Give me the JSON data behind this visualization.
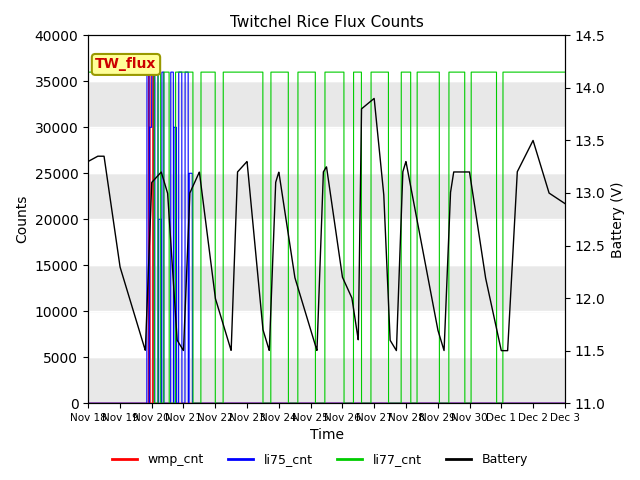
{
  "title": "Twitchel Rice Flux Counts",
  "xlabel": "Time",
  "ylabel_left": "Counts",
  "ylabel_right": "Battery (V)",
  "ylim_left": [
    0,
    40000
  ],
  "ylim_right": [
    11.0,
    14.5
  ],
  "yticks_left": [
    0,
    5000,
    10000,
    15000,
    20000,
    25000,
    30000,
    35000,
    40000
  ],
  "yticks_right": [
    11.0,
    11.5,
    12.0,
    12.5,
    13.0,
    13.5,
    14.0,
    14.5
  ],
  "xtick_labels": [
    "Nov 18",
    "Nov 19",
    "Nov 20",
    "Nov 21",
    "Nov 22",
    "Nov 23",
    "Nov 24",
    "Nov 25",
    "Nov 26",
    "Nov 27",
    "Nov 28",
    "Nov 29",
    "Nov 30",
    "Dec 1",
    "Dec 2",
    "Dec 3"
  ],
  "annotation_text": "TW_flux",
  "annotation_color": "#cc0000",
  "annotation_bg": "#ffff99",
  "bg_band_colors": [
    "#e8e8e8",
    "#ffffff"
  ],
  "wmp_color": "#ff0000",
  "li75_color": "#0000ff",
  "li77_color": "#00cc00",
  "battery_color": "#000000",
  "figsize": [
    6.4,
    4.8
  ],
  "dpi": 100,
  "n_days": 15
}
